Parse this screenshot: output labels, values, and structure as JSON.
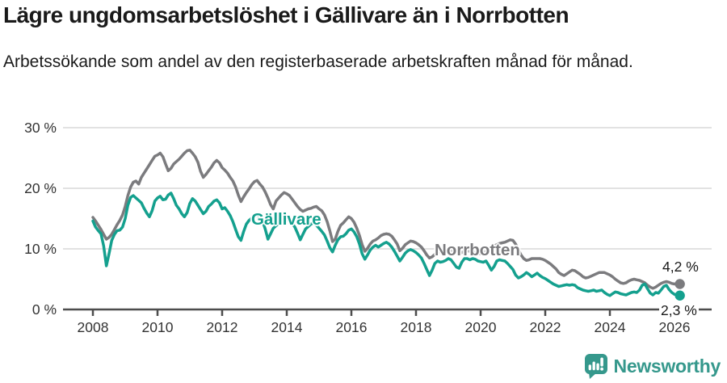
{
  "header": {
    "title": "Lägre ungdomsarbetslöshet i Gällivare än i Norrbotten",
    "subtitle": "Arbetssökande som andel av den registerbaserade arbetskraften månad för månad."
  },
  "chart_data": {
    "type": "line",
    "title": "Lägre ungdomsarbetslöshet i Gällivare än i Norrbotten",
    "unit": "%",
    "x_start_year": 2008,
    "points_per_year": 12,
    "x_ticks": [
      2008,
      2010,
      2012,
      2014,
      2016,
      2018,
      2020,
      2022,
      2024,
      2026
    ],
    "y_ticks": [
      {
        "value": 0,
        "label": "0 %"
      },
      {
        "value": 10,
        "label": "10 %"
      },
      {
        "value": 20,
        "label": "20 %"
      },
      {
        "value": 30,
        "label": "30 %"
      }
    ],
    "ylim": [
      0,
      30
    ],
    "grid": "horizontal",
    "colors": {
      "grid": "#d9d9d9",
      "axis": "#4d4d4d",
      "tick_text": "#333333"
    },
    "series": [
      {
        "name": "Norrbotten",
        "color": "#7b7b7e",
        "end_label": "4,2 %",
        "last_value": 4.2,
        "values": [
          15.2,
          14.6,
          13.9,
          13.2,
          12.4,
          11.6,
          11.9,
          12.4,
          13.2,
          14.0,
          14.7,
          15.6,
          17.0,
          18.8,
          20.2,
          21.0,
          21.2,
          20.7,
          21.8,
          22.5,
          23.2,
          23.9,
          24.6,
          25.3,
          25.5,
          25.8,
          25.2,
          24.0,
          22.9,
          23.3,
          24.0,
          24.4,
          24.8,
          25.3,
          25.8,
          26.2,
          26.3,
          25.8,
          25.2,
          24.3,
          22.8,
          21.8,
          22.3,
          22.9,
          23.5,
          24.2,
          24.6,
          24.2,
          23.4,
          23.0,
          22.5,
          21.8,
          21.2,
          20.2,
          18.9,
          17.8,
          18.6,
          19.3,
          19.9,
          20.6,
          21.1,
          21.3,
          20.7,
          20.2,
          19.4,
          18.4,
          17.3,
          16.6,
          17.9,
          18.4,
          18.9,
          19.3,
          19.1,
          18.8,
          18.2,
          17.6,
          17.0,
          16.5,
          16.2,
          16.4,
          16.6,
          16.7,
          16.9,
          17.0,
          16.6,
          16.3,
          15.6,
          14.5,
          13.0,
          11.2,
          11.6,
          12.9,
          13.9,
          14.3,
          14.8,
          15.3,
          15.0,
          14.4,
          13.4,
          12.2,
          10.7,
          9.6,
          10.1,
          10.8,
          11.3,
          11.5,
          11.8,
          12.2,
          12.4,
          12.5,
          12.4,
          12.1,
          11.5,
          10.8,
          9.7,
          10.1,
          10.7,
          11.0,
          11.3,
          11.2,
          11.0,
          10.7,
          10.3,
          9.7,
          9.0,
          8.5,
          8.7,
          9.1,
          9.4,
          9.6,
          9.7,
          9.8,
          9.9,
          9.8,
          9.6,
          9.3,
          9.2,
          9.4,
          9.6,
          9.7,
          9.6,
          9.5,
          9.4,
          9.3,
          9.2,
          9.3,
          9.6,
          9.9,
          10.2,
          10.5,
          10.7,
          10.9,
          11.0,
          11.1,
          11.3,
          11.5,
          11.4,
          10.8,
          9.9,
          9.0,
          8.4,
          8.1,
          8.2,
          8.4,
          8.4,
          8.4,
          8.4,
          8.3,
          8.1,
          7.8,
          7.5,
          7.1,
          6.7,
          6.1,
          5.8,
          5.6,
          5.9,
          6.2,
          6.5,
          6.4,
          6.1,
          5.8,
          5.4,
          5.2,
          5.3,
          5.5,
          5.7,
          5.9,
          6.1,
          6.1,
          6.1,
          5.9,
          5.7,
          5.4,
          5.0,
          4.7,
          4.4,
          4.3,
          4.4,
          4.7,
          4.9,
          5.0,
          4.9,
          4.8,
          4.6,
          4.4,
          4.0,
          3.7,
          3.5,
          3.7,
          4.0,
          4.3,
          4.5,
          4.6,
          4.5,
          4.3,
          4.2,
          4.3,
          4.2
        ]
      },
      {
        "name": "Gällivare",
        "color": "#14a08e",
        "end_label": "2,3 %",
        "last_value": 2.3,
        "values": [
          14.6,
          13.6,
          13.0,
          12.5,
          10.5,
          7.2,
          9.2,
          11.4,
          12.4,
          13.0,
          13.1,
          13.6,
          15.0,
          17.2,
          18.5,
          18.8,
          18.4,
          18.0,
          17.6,
          16.7,
          15.9,
          15.3,
          16.3,
          17.9,
          18.4,
          18.7,
          18.1,
          18.2,
          18.9,
          19.2,
          18.3,
          17.2,
          16.6,
          15.8,
          15.3,
          16.0,
          17.5,
          18.3,
          17.9,
          17.2,
          16.5,
          15.8,
          16.2,
          17.0,
          17.4,
          17.9,
          18.1,
          17.6,
          16.6,
          16.8,
          16.2,
          15.5,
          14.5,
          13.2,
          12.0,
          11.4,
          12.9,
          14.1,
          14.7,
          15.1,
          15.4,
          15.6,
          15.2,
          14.6,
          13.3,
          11.6,
          12.5,
          13.4,
          13.8,
          14.2,
          14.5,
          14.8,
          14.9,
          14.6,
          14.2,
          13.6,
          12.6,
          11.5,
          12.4,
          13.3,
          13.7,
          14.1,
          14.3,
          13.9,
          13.4,
          12.9,
          12.3,
          11.3,
          10.2,
          9.5,
          10.6,
          11.5,
          12.0,
          12.1,
          12.5,
          13.1,
          13.3,
          12.8,
          12.0,
          10.8,
          9.2,
          8.3,
          9.0,
          9.8,
          10.3,
          10.6,
          10.3,
          10.6,
          10.9,
          11.1,
          10.8,
          10.3,
          9.6,
          8.8,
          8.0,
          8.6,
          9.3,
          9.7,
          9.9,
          9.7,
          9.4,
          9.0,
          8.5,
          7.6,
          6.6,
          5.6,
          6.5,
          7.6,
          8.0,
          7.8,
          7.9,
          8.1,
          8.4,
          8.2,
          7.6,
          7.0,
          6.8,
          7.8,
          8.4,
          8.4,
          8.2,
          8.4,
          8.3,
          8.0,
          7.9,
          7.8,
          8.0,
          7.3,
          6.5,
          7.1,
          8.0,
          8.2,
          8.1,
          8.0,
          7.6,
          7.1,
          6.6,
          5.7,
          5.2,
          5.4,
          5.7,
          6.1,
          5.8,
          5.4,
          5.7,
          6.0,
          5.6,
          5.3,
          5.1,
          4.8,
          4.5,
          4.2,
          4.0,
          3.8,
          3.9,
          4.0,
          4.1,
          4.0,
          4.1,
          4.0,
          3.6,
          3.4,
          3.2,
          3.1,
          3.0,
          3.1,
          3.2,
          3.0,
          3.1,
          3.2,
          2.8,
          2.5,
          2.3,
          2.6,
          2.9,
          2.8,
          2.6,
          2.5,
          2.4,
          2.6,
          2.8,
          2.9,
          2.8,
          3.2,
          4.0,
          4.2,
          3.4,
          2.7,
          2.4,
          2.8,
          2.7,
          3.2,
          3.8,
          4.0,
          3.3,
          2.8,
          2.5,
          2.4,
          2.3
        ]
      }
    ]
  },
  "footer": {
    "brand": "Newsworthy",
    "brand_color": "#35988c"
  }
}
